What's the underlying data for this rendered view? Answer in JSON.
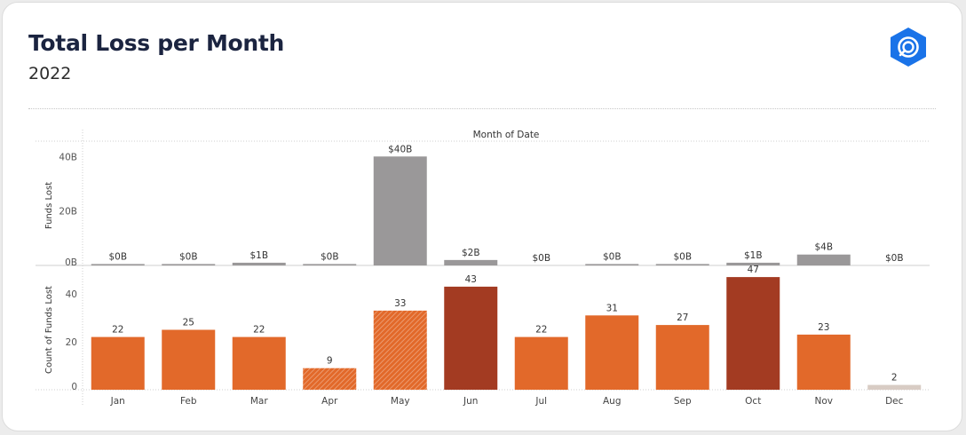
{
  "header": {
    "title": "Total Loss per Month",
    "subtitle": "2022"
  },
  "colors": {
    "funds_bar": "#9a9899",
    "count_bar_normal": "#e2692a",
    "count_bar_high": "#a33b22",
    "count_bar_low": "#d8ccc4",
    "logo": "#1a73e8"
  },
  "icons": {
    "logo": "hexagon-logo-icon"
  },
  "chart_data": {
    "type": "bar",
    "top_label": "Month of Date",
    "categories": [
      "Jan",
      "Feb",
      "Mar",
      "Apr",
      "May",
      "Jun",
      "Jul",
      "Aug",
      "Sep",
      "Oct",
      "Nov",
      "Dec"
    ],
    "panels": [
      {
        "ylabel": "Funds Lost",
        "yticks": [
          "40B",
          "20B",
          "0B"
        ],
        "tick_values": [
          40,
          20,
          0
        ],
        "ylim": [
          0,
          44
        ],
        "values": [
          0.1,
          0.1,
          1,
          0.1,
          40,
          2,
          0,
          0.1,
          0.1,
          1,
          4,
          0
        ],
        "labels": [
          "$0B",
          "$0B",
          "$1B",
          "$0B",
          "$40B",
          "$2B",
          "$0B",
          "$0B",
          "$0B",
          "$1B",
          "$4B",
          "$0B"
        ]
      },
      {
        "ylabel": "Count of Funds Lost",
        "yticks": [
          "40",
          "20",
          "0"
        ],
        "tick_values": [
          40,
          20,
          0
        ],
        "ylim": [
          0,
          50
        ],
        "values": [
          22,
          25,
          22,
          9,
          33,
          43,
          22,
          31,
          27,
          47,
          23,
          2
        ],
        "labels": [
          "22",
          "25",
          "22",
          "9",
          "33",
          "43",
          "22",
          "31",
          "27",
          "47",
          "23",
          "2"
        ],
        "bar_colors": [
          "normal",
          "normal",
          "normal",
          "normal",
          "normal",
          "high",
          "normal",
          "normal",
          "normal",
          "high",
          "normal",
          "low"
        ],
        "hatched": [
          false,
          false,
          false,
          true,
          true,
          false,
          false,
          false,
          false,
          false,
          false,
          false
        ]
      }
    ],
    "grid": false
  }
}
